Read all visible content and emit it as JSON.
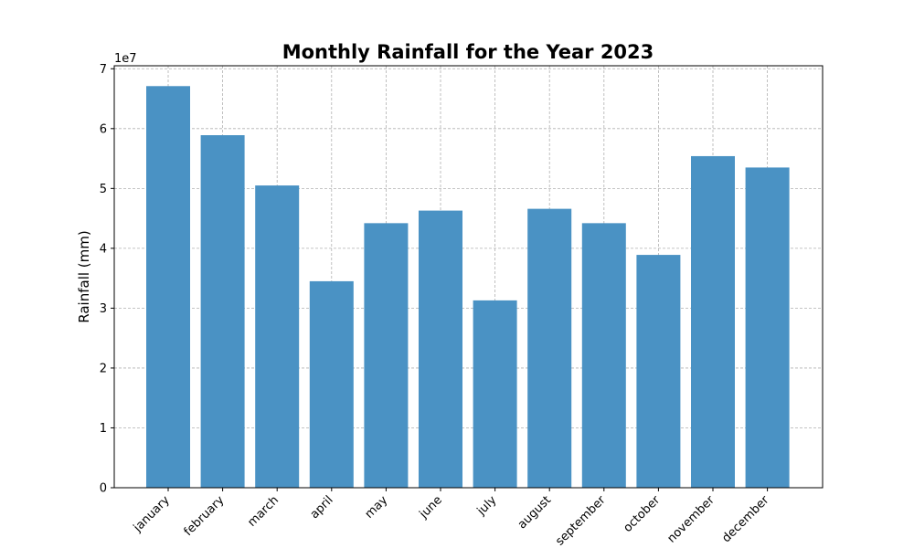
{
  "chart_data": {
    "type": "bar",
    "title": "Monthly Rainfall for the Year 2023",
    "xlabel": "",
    "ylabel": "Rainfall (mm)",
    "y_offset_label": "1e7",
    "y_scale": 10000000,
    "categories": [
      "january",
      "february",
      "march",
      "april",
      "may",
      "june",
      "july",
      "august",
      "september",
      "october",
      "november",
      "december"
    ],
    "values": [
      67100000,
      58900000,
      50500000,
      34500000,
      44200000,
      46300000,
      31300000,
      46600000,
      44200000,
      38900000,
      55400000,
      53500000
    ],
    "yticks": [
      0,
      1,
      2,
      3,
      4,
      5,
      6,
      7
    ],
    "ylim": [
      0,
      70500000
    ],
    "grid": true,
    "bar_color": "#4a92c4"
  }
}
